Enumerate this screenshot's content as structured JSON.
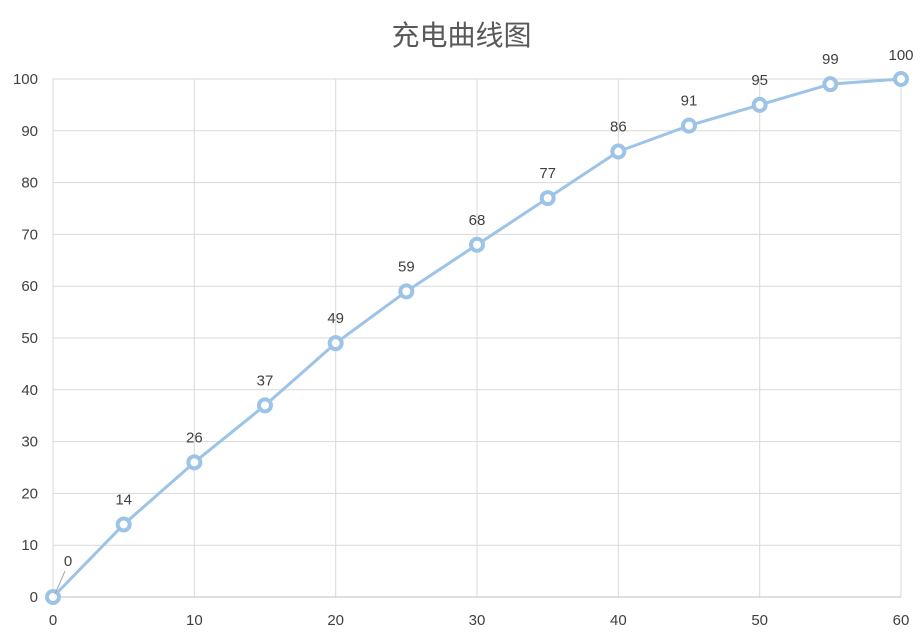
{
  "chart_data": {
    "type": "line",
    "title": "充电曲线图",
    "xlabel": "",
    "ylabel": "",
    "x": [
      0,
      5,
      10,
      15,
      20,
      25,
      30,
      35,
      40,
      45,
      50,
      55,
      60
    ],
    "series": [
      {
        "values": [
          0,
          14,
          26,
          37,
          49,
          59,
          68,
          77,
          86,
          91,
          95,
          99,
          100
        ]
      }
    ],
    "xlim": [
      0,
      60
    ],
    "ylim": [
      0,
      100
    ],
    "xticks": [
      0,
      10,
      20,
      30,
      40,
      50,
      60
    ],
    "yticks": [
      0,
      10,
      20,
      30,
      40,
      50,
      60,
      70,
      80,
      90,
      100
    ],
    "grid": true,
    "legend": "none",
    "data_labels": true,
    "colors": {
      "line": "#9dc3e6",
      "grid": "#d9d9d9",
      "axis": "#bfbfbf",
      "tick_text": "#404040",
      "label_text": "#404040",
      "title": "#595959"
    }
  }
}
